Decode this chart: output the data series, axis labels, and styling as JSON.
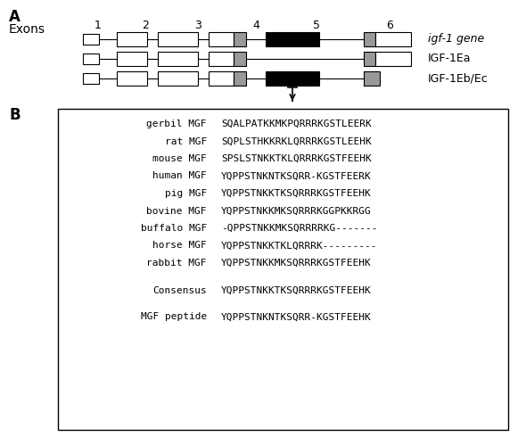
{
  "title_A": "A",
  "title_B": "B",
  "exon_label": "Exons",
  "exon_numbers": [
    "1",
    "2",
    "3",
    "4",
    "5",
    "6"
  ],
  "gene_labels": [
    "igf-1 gene",
    "IGF-1Ea",
    "IGF-1Eb/Ec"
  ],
  "sequences": [
    {
      "label": "gerbil MGF",
      "seq": "SQALPATKKMKPQRRRKGSTLEERK"
    },
    {
      "label": "rat MGF",
      "seq": "SQPLSTHKKRKLQRRRKGSTLEEHK"
    },
    {
      "label": "mouse MGF",
      "seq": "SPSLSTNKKTKLQRRRKGSTFEEHK"
    },
    {
      "label": "human MGF",
      "seq": "YQPPSTNKNTKSQRR-KGSTFEERK"
    },
    {
      "label": "pig MGF",
      "seq": "YQPPSTNKKTKSQRRRKGSTFEEHK"
    },
    {
      "label": "bovine MGF",
      "seq": "YQPPSTNKKMKSQRRRKGGPKKRGG"
    },
    {
      "label": "buffalo MGF",
      "seq": "-QPPSTNKKMKSQRRRRKG-------"
    },
    {
      "label": "horse MGF",
      "seq": "YQPPSTNKKTKLQRRRK---------"
    },
    {
      "label": "rabbit MGF",
      "seq": "YQPPSTNKKMKSQRRRKGSTFEEHK"
    }
  ],
  "consensus": {
    "label": "Consensus",
    "seq": "YQPPSTNKKTKSQRRRKGSTFEEHK"
  },
  "mgf_peptide": {
    "label": "MGF peptide",
    "seq": "YQPPSTNKNTKSQRR-KGSTFEEHK"
  },
  "background_color": "#ffffff"
}
